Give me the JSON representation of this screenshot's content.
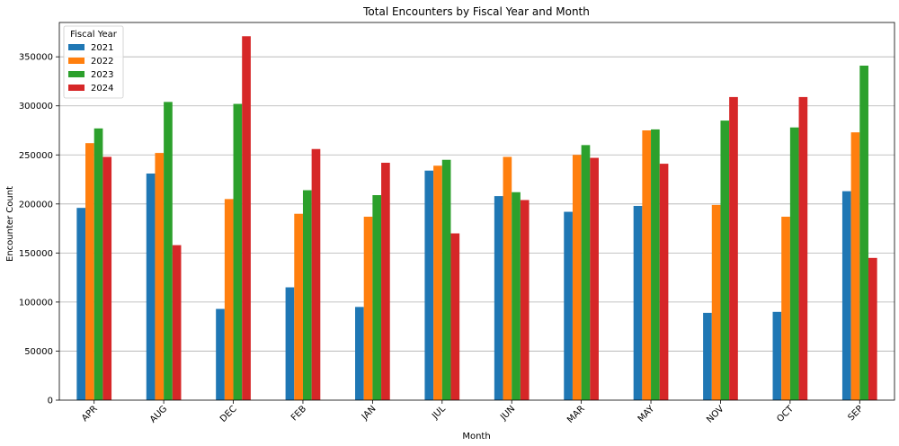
{
  "chart_data": {
    "type": "bar",
    "title": "Total Encounters by Fiscal Year and Month",
    "xlabel": "Month",
    "ylabel": "Encounter Count",
    "categories": [
      "APR",
      "AUG",
      "DEC",
      "FEB",
      "JAN",
      "JUL",
      "JUN",
      "MAR",
      "MAY",
      "NOV",
      "OCT",
      "SEP"
    ],
    "ylim": [
      0,
      385000
    ],
    "yticks": [
      0,
      50000,
      100000,
      150000,
      200000,
      250000,
      300000,
      350000
    ],
    "ytick_labels": [
      "0",
      "50000",
      "100000",
      "150000",
      "200000",
      "250000",
      "300000",
      "350000"
    ],
    "grid": "horizontal",
    "legend": {
      "title": "Fiscal Year",
      "placement": "top-left"
    },
    "series": [
      {
        "name": "2021",
        "color": "#1f77b4",
        "values": [
          196000,
          231000,
          93000,
          115000,
          95000,
          234000,
          208000,
          192000,
          198000,
          89000,
          90000,
          213000
        ]
      },
      {
        "name": "2022",
        "color": "#ff7f0e",
        "values": [
          262000,
          252000,
          205000,
          190000,
          187000,
          239000,
          248000,
          250000,
          275000,
          199000,
          187000,
          273000
        ]
      },
      {
        "name": "2023",
        "color": "#2ca02c",
        "values": [
          277000,
          304000,
          302000,
          214000,
          209000,
          245000,
          212000,
          260000,
          276000,
          285000,
          278000,
          341000
        ]
      },
      {
        "name": "2024",
        "color": "#d62728",
        "values": [
          248000,
          158000,
          371000,
          256000,
          242000,
          170000,
          204000,
          247000,
          241000,
          309000,
          309000,
          145000
        ]
      }
    ]
  }
}
